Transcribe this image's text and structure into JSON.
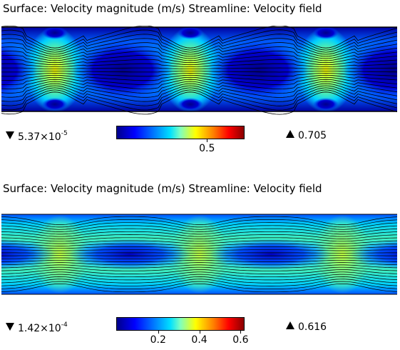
{
  "plots": [
    {
      "title": "Surface: Velocity magnitude (m/s)  Streamline: Velocity field",
      "min_value": "5.37×10",
      "min_exponent": "-5",
      "max_value": "0.705",
      "colorbar_ticks": [
        {
          "label": "0.5",
          "value": 0.5
        }
      ],
      "range": [
        5.37e-05,
        0.705
      ]
    },
    {
      "title": "Surface: Velocity magnitude (m/s)  Streamline: Velocity field",
      "min_value": "1.42×10",
      "min_exponent": "-4",
      "max_value": "0.616",
      "colorbar_ticks": [
        {
          "label": "0.2",
          "value": 0.2
        },
        {
          "label": "0.4",
          "value": 0.4
        },
        {
          "label": "0.6",
          "value": 0.6
        }
      ],
      "range": [
        0.000142,
        0.616
      ]
    }
  ],
  "colors": {
    "low": "#0000a0",
    "mid": "#40e0d0",
    "high": "#ffff00",
    "streamline": "#000000"
  }
}
